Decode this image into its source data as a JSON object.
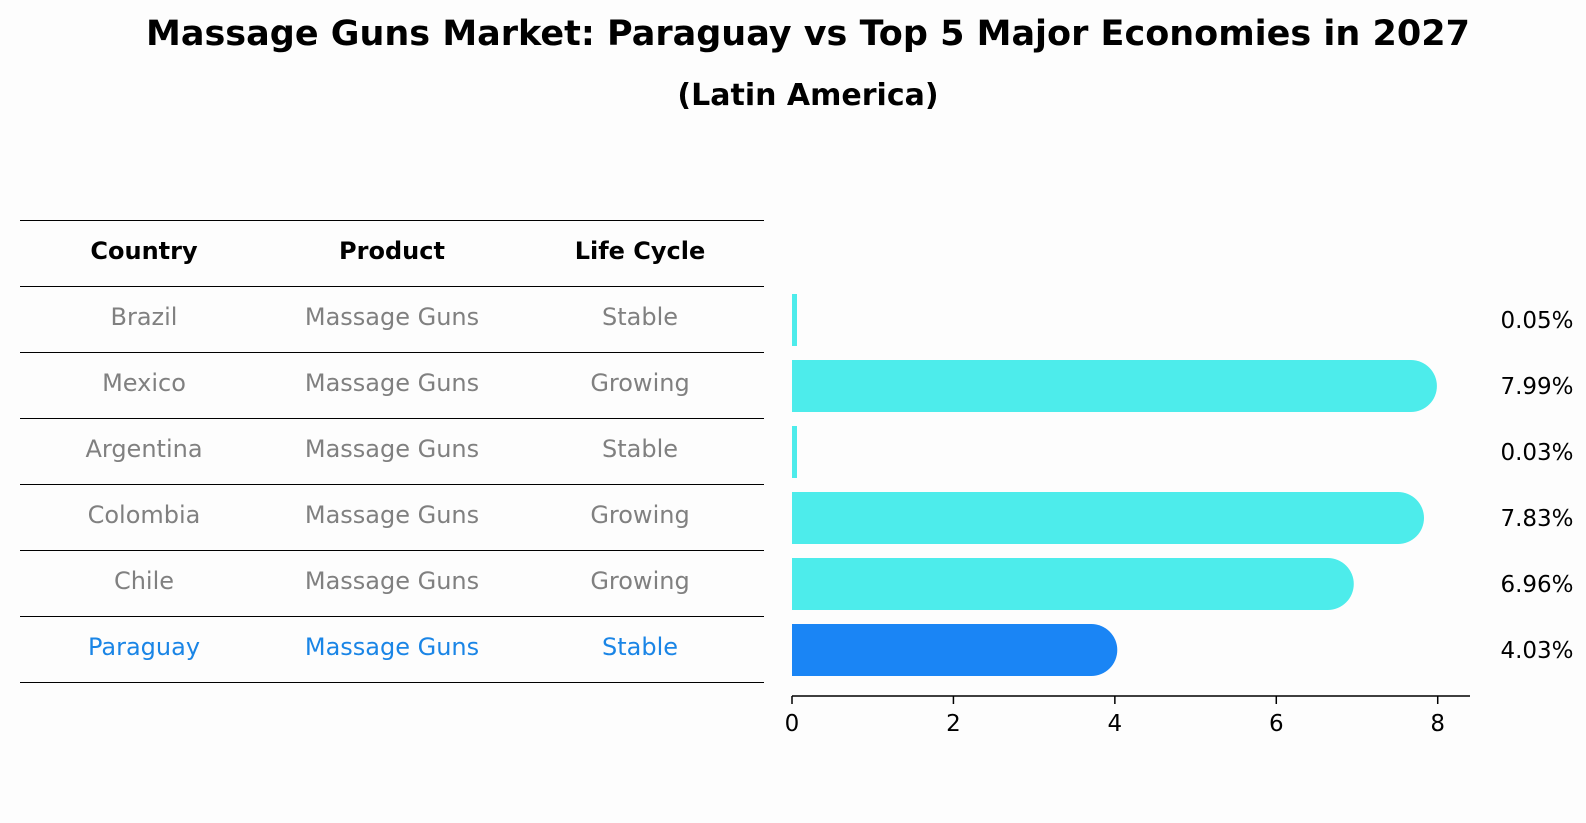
{
  "title": "Massage Guns Market: Paraguay vs Top 5 Major Economies in 2027",
  "subtitle": "(Latin America)",
  "table": {
    "headers": [
      "Country",
      "Product",
      "Life Cycle"
    ],
    "rows": [
      {
        "country": "Brazil",
        "product": "Massage Guns",
        "life_cycle": "Stable"
      },
      {
        "country": "Mexico",
        "product": "Massage Guns",
        "life_cycle": "Growing"
      },
      {
        "country": "Argentina",
        "product": "Massage Guns",
        "life_cycle": "Stable"
      },
      {
        "country": "Colombia",
        "product": "Massage Guns",
        "life_cycle": "Growing"
      },
      {
        "country": "Chile",
        "product": "Massage Guns",
        "life_cycle": "Growing"
      },
      {
        "country": "Paraguay",
        "product": "Massage Guns",
        "life_cycle": "Stable"
      }
    ],
    "highlight_row": "Paraguay"
  },
  "colors": {
    "bar": "#4deceb",
    "highlight_bar": "#1a85f5",
    "highlight_text": "#1a85e6",
    "muted_text": "#808080"
  },
  "chart_data": {
    "type": "bar",
    "orientation": "horizontal",
    "categories": [
      "Brazil",
      "Mexico",
      "Argentina",
      "Colombia",
      "Chile",
      "Paraguay"
    ],
    "values": [
      0.05,
      7.99,
      0.03,
      7.83,
      6.96,
      4.03
    ],
    "value_labels": [
      "0.05%",
      "7.99%",
      "0.03%",
      "7.83%",
      "6.96%",
      "4.03%"
    ],
    "xlim": [
      0,
      8.4
    ],
    "xticks": [
      0,
      2,
      4,
      6,
      8
    ],
    "xtick_labels": [
      "0",
      "2",
      "4",
      "6",
      "8"
    ],
    "grid": false
  }
}
